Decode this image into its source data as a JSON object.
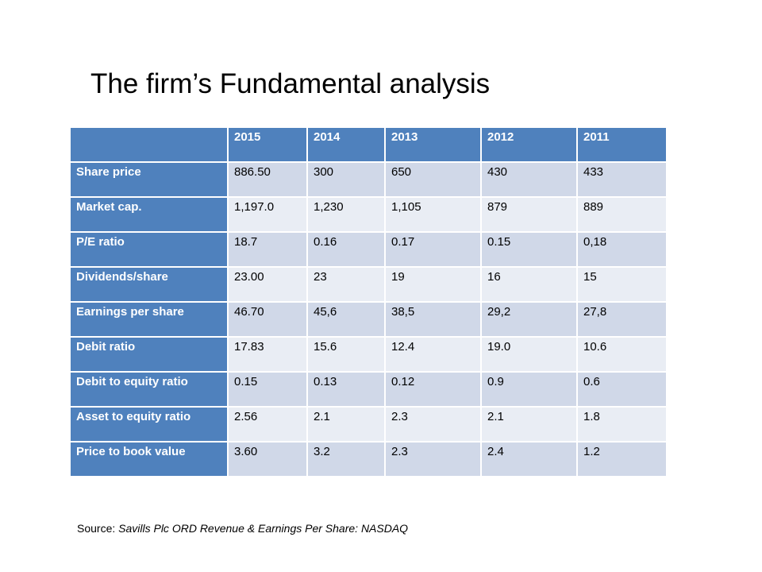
{
  "title": "The firm’s Fundamental analysis",
  "table": {
    "corner": "",
    "years": [
      "2015",
      "2014",
      "2013",
      "2012",
      "2011"
    ],
    "rows": [
      {
        "label": "Share price",
        "values": [
          "886.50",
          "300",
          "650",
          "430",
          "433"
        ]
      },
      {
        "label": "Market cap.",
        "values": [
          "1,197.0",
          "1,230",
          "1,105",
          "879",
          "889"
        ]
      },
      {
        "label": "P/E ratio",
        "values": [
          "18.7",
          "0.16",
          "0.17",
          "0.15",
          "0,18"
        ]
      },
      {
        "label": "Dividends/share",
        "values": [
          "23.00",
          "23",
          "19",
          "16",
          "15"
        ]
      },
      {
        "label": "Earnings per share",
        "values": [
          "46.70",
          "45,6",
          "38,5",
          "29,2",
          "27,8"
        ]
      },
      {
        "label": "Debit ratio",
        "values": [
          "17.83",
          "15.6",
          "12.4",
          "19.0",
          "10.6"
        ]
      },
      {
        "label": "Debit to equity ratio",
        "values": [
          "0.15",
          "0.13",
          "0.12",
          "0.9",
          "0.6"
        ]
      },
      {
        "label": "Asset to equity ratio",
        "values": [
          "2.56",
          "2.1",
          "2.3",
          "2.1",
          "1.8"
        ]
      },
      {
        "label": "Price to book value",
        "values": [
          "3.60",
          "3.2",
          "2.3",
          "2.4",
          "1.2"
        ]
      }
    ]
  },
  "source": {
    "prefix": "Source: ",
    "text": "Savills Plc ORD Revenue & Earnings Per Share: NASDAQ"
  },
  "colors": {
    "header_blue": "#4f81bd",
    "row_dark": "#d0d8e8",
    "row_light": "#e9edf4"
  }
}
